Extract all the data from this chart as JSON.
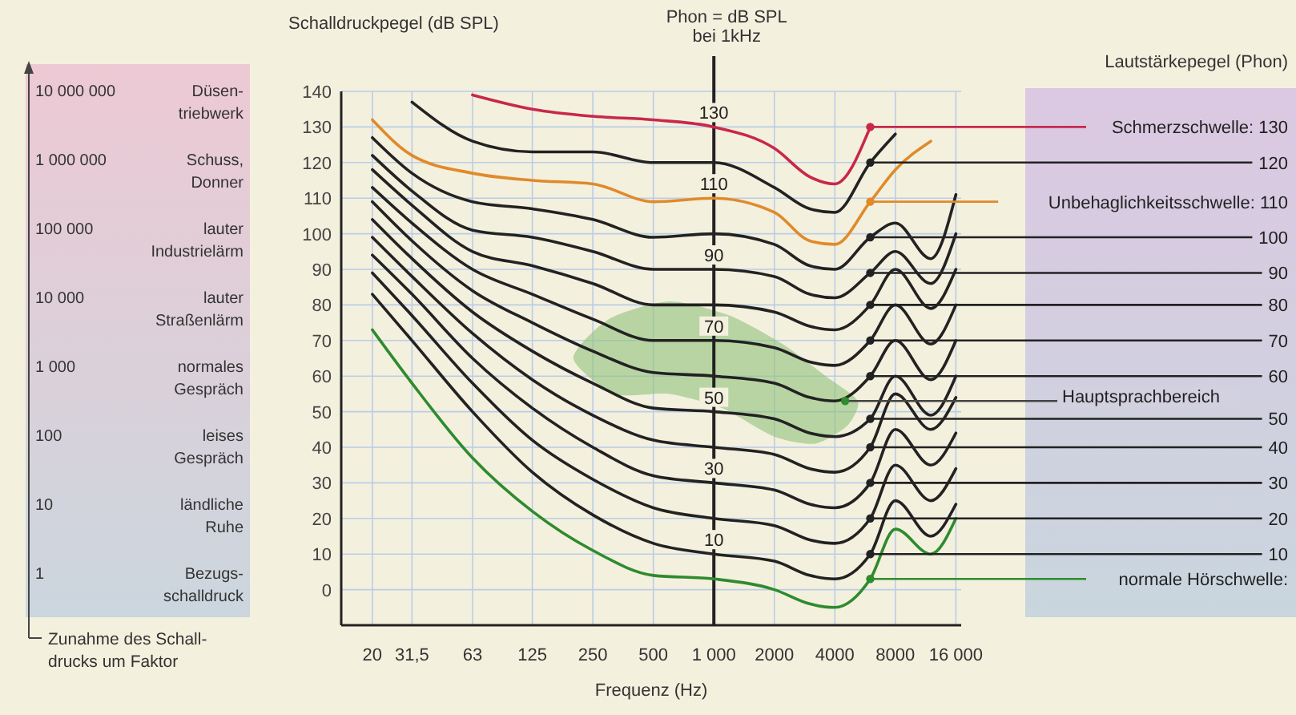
{
  "chart_data": {
    "type": "line",
    "ylabel": "Schalldruckpegel (dB SPL)",
    "xlabel": "Frequenz (Hz)",
    "legend_title": "Lautstärkepegel (Phon)",
    "log": "x",
    "grid": true,
    "xlim": [
      14,
      17000
    ],
    "ylim": [
      -10,
      140
    ],
    "xticks": [
      20,
      {
        "value": 31.5,
        "label": "31,5"
      },
      63,
      125,
      250,
      500,
      {
        "value": 1000,
        "label": "1 000"
      },
      2000,
      4000,
      8000,
      {
        "value": 16000,
        "label": "16 000"
      }
    ],
    "yticks": [
      0,
      10,
      20,
      30,
      40,
      50,
      60,
      70,
      80,
      90,
      100,
      110,
      120,
      130,
      140
    ],
    "x": [
      20,
      31.5,
      63,
      125,
      250,
      500,
      1000,
      2000,
      3000,
      4000,
      6000,
      8000,
      12000,
      16000
    ],
    "ref_lines": [
      {
        "axis": "x",
        "value": 1000,
        "label": "Phon = dB SPL\nbei 1kHz",
        "color": "#222222"
      }
    ],
    "series": [
      {
        "name": "Schmerzschwelle: 130",
        "color": "#c8284a",
        "values": [
          null,
          null,
          139,
          135,
          133,
          132,
          130,
          124,
          116,
          114,
          130,
          null,
          null,
          null
        ],
        "value_labels": [
          null,
          null,
          null,
          null,
          null,
          null,
          "130",
          null,
          null,
          null,
          null,
          null,
          null,
          null
        ]
      },
      {
        "name": "120",
        "color": "#222222",
        "values": [
          null,
          137,
          126,
          123,
          123,
          120,
          120,
          113,
          107,
          106,
          120,
          128,
          null,
          null
        ]
      },
      {
        "name": "Unbehaglichkeitsschwelle: 110",
        "color": "#e08a2a",
        "values": [
          132,
          122,
          117,
          115,
          114,
          109,
          110,
          106,
          98,
          97,
          109,
          118,
          126,
          null
        ],
        "value_labels": [
          null,
          null,
          null,
          null,
          null,
          null,
          "110",
          null,
          null,
          null,
          null,
          null,
          null,
          null
        ]
      },
      {
        "name": "100",
        "color": "#222222",
        "values": [
          127,
          117,
          109,
          107,
          104,
          99,
          100,
          97,
          91,
          90,
          99,
          103,
          93,
          111
        ]
      },
      {
        "name": "90",
        "color": "#222222",
        "values": [
          122,
          112,
          101,
          99,
          95,
          90,
          90,
          88,
          83,
          82,
          89,
          95,
          86,
          100
        ],
        "value_labels": [
          null,
          null,
          null,
          null,
          null,
          null,
          "90",
          null,
          null,
          null,
          null,
          null,
          null,
          null
        ]
      },
      {
        "name": "80",
        "color": "#222222",
        "values": [
          118,
          108,
          95,
          91,
          86,
          80,
          80,
          78,
          74,
          73,
          80,
          90,
          79,
          90
        ]
      },
      {
        "name": "70",
        "color": "#222222",
        "values": [
          113,
          103,
          90,
          83,
          76,
          70,
          70,
          68,
          64,
          63,
          70,
          80,
          69,
          80
        ],
        "value_labels": [
          null,
          null,
          null,
          null,
          null,
          null,
          "70",
          null,
          null,
          null,
          null,
          null,
          null,
          null
        ]
      },
      {
        "name": "60",
        "color": "#222222",
        "values": [
          109,
          98,
          84,
          75,
          67,
          61,
          60,
          58,
          54,
          53,
          60,
          70,
          59,
          70
        ]
      },
      {
        "name": "50",
        "color": "#222222",
        "values": [
          104,
          93,
          78,
          67,
          58,
          51,
          50,
          48,
          44,
          43,
          48,
          60,
          49,
          60
        ],
        "value_labels": [
          null,
          null,
          null,
          null,
          null,
          null,
          "50",
          null,
          null,
          null,
          null,
          null,
          null,
          null
        ]
      },
      {
        "name": "40",
        "color": "#222222",
        "values": [
          99,
          88,
          72,
          59,
          49,
          42,
          40,
          38,
          34,
          33,
          40,
          55,
          45,
          54
        ]
      },
      {
        "name": "30",
        "color": "#222222",
        "values": [
          94,
          83,
          65,
          51,
          40,
          32,
          30,
          28,
          24,
          23,
          30,
          45,
          35,
          44
        ],
        "value_labels": [
          null,
          null,
          null,
          null,
          null,
          null,
          "30",
          null,
          null,
          null,
          null,
          null,
          null,
          null
        ]
      },
      {
        "name": "20",
        "color": "#222222",
        "values": [
          89,
          77,
          58,
          42,
          31,
          23,
          20,
          18,
          14,
          13,
          20,
          35,
          25,
          34
        ]
      },
      {
        "name": "10",
        "color": "#222222",
        "values": [
          83,
          70,
          50,
          33,
          21,
          13,
          10,
          8,
          4,
          3,
          10,
          25,
          15,
          24
        ],
        "value_labels": [
          null,
          null,
          null,
          null,
          null,
          null,
          "10",
          null,
          null,
          null,
          null,
          null,
          null,
          null
        ]
      },
      {
        "name": "normale Hörschwelle:",
        "color": "#2e8b2e",
        "values": [
          73,
          58,
          37,
          22,
          11,
          4,
          3,
          0,
          -4,
          -5,
          3,
          17,
          10,
          20
        ]
      }
    ],
    "annotations": [
      "10 000 000",
      "Düsen-\ntriebwerk",
      "1 000 000",
      "Schuss,\nDonner",
      "100 000",
      "lauter\nIndustrielärm",
      "10 000",
      "lauter\nStraßenlärm",
      "1 000",
      "normales\nGespräch",
      "100",
      "leises\nGespräch",
      "10",
      "ländliche\nRuhe",
      "1",
      "Bezugs-\nschalldruck",
      "Zunahme des Schall-\ndrucks um Faktor",
      {
        "text": "Hauptsprachbereich",
        "x": 4500,
        "y": 53
      }
    ]
  }
}
